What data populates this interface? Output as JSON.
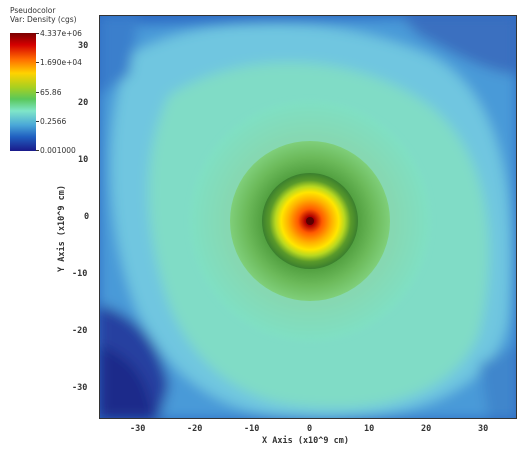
{
  "legend": {
    "plot_type": "Pseudocolor",
    "variable": "Var: Density (cgs)",
    "max_label": "4.337e+06",
    "ticks": [
      "1.690e+04",
      "65.86",
      "0.2566"
    ],
    "min_label": "0.001000"
  },
  "axes": {
    "x_label": "X Axis  (x10^9 cm)",
    "y_label": "Y Axis  (x10^9 cm)",
    "x_ticks": [
      "-30",
      "-20",
      "-10",
      "0",
      "10",
      "20",
      "30"
    ],
    "y_ticks": [
      "30",
      "20",
      "10",
      "0",
      "-10",
      "-20",
      "-30"
    ]
  },
  "colors": {
    "core": "#8a0000",
    "inner": "#ff5a00",
    "mid": "#ffe000",
    "ring": "#3f8f2a",
    "outer": "#7fd9a8",
    "background": "#1b3a9a"
  }
}
